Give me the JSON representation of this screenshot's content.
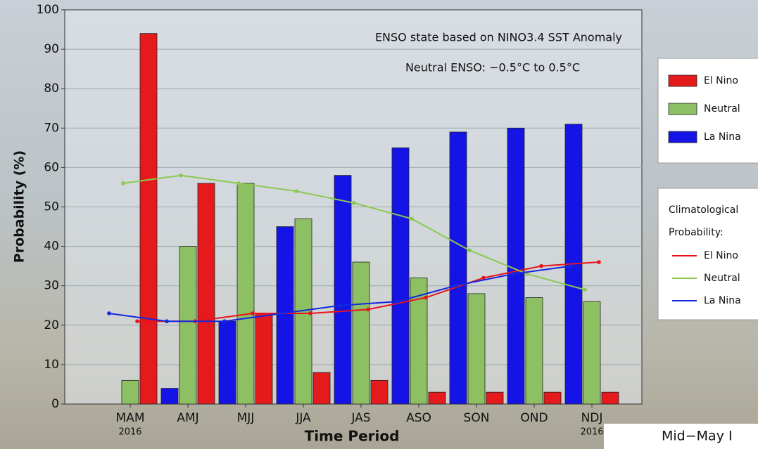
{
  "chart_data": {
    "type": "bar",
    "annotations": [
      "ENSO state based on NINO3.4 SST Anomaly",
      "Neutral ENSO: −0.5°C to 0.5°C"
    ],
    "y_label": "Probability (%)",
    "x_label": "Time Period",
    "categories": [
      "MAM",
      "AMJ",
      "MJJ",
      "JJA",
      "JAS",
      "ASO",
      "SON",
      "OND",
      "NDJ"
    ],
    "category_sublabels": [
      "2016",
      null,
      null,
      null,
      null,
      null,
      null,
      null,
      "2016"
    ],
    "series": [
      {
        "name": "El Nino",
        "color": "#e41a1c",
        "values": [
          94,
          56,
          23,
          8,
          6,
          3,
          3,
          3,
          3
        ]
      },
      {
        "name": "Neutral",
        "color": "#8cc063",
        "values": [
          6,
          40,
          56,
          47,
          36,
          32,
          28,
          27,
          26
        ]
      },
      {
        "name": "La Nina",
        "color": "#1414e6",
        "values": [
          0,
          4,
          21,
          45,
          58,
          65,
          69,
          70,
          71
        ]
      }
    ],
    "climatology": {
      "title": [
        "Climatological",
        "Probability:"
      ],
      "series": [
        {
          "name": "El Nino",
          "color": "#e8141c",
          "values": [
            21,
            21,
            23,
            23,
            24,
            27,
            32,
            35,
            36
          ]
        },
        {
          "name": "Neutral",
          "color": "#8cc850",
          "values": [
            56,
            58,
            56,
            54,
            51,
            47,
            39,
            33,
            29
          ]
        },
        {
          "name": "La Nina",
          "color": "#1428e0",
          "values": [
            23,
            21,
            21,
            23,
            25,
            26,
            30,
            33,
            35
          ]
        }
      ]
    },
    "ylim": [
      0,
      100
    ],
    "yticks": [
      0,
      10,
      20,
      30,
      40,
      50,
      60,
      70,
      80,
      90,
      100
    ],
    "grid": true,
    "footer": "Mid−May I"
  }
}
